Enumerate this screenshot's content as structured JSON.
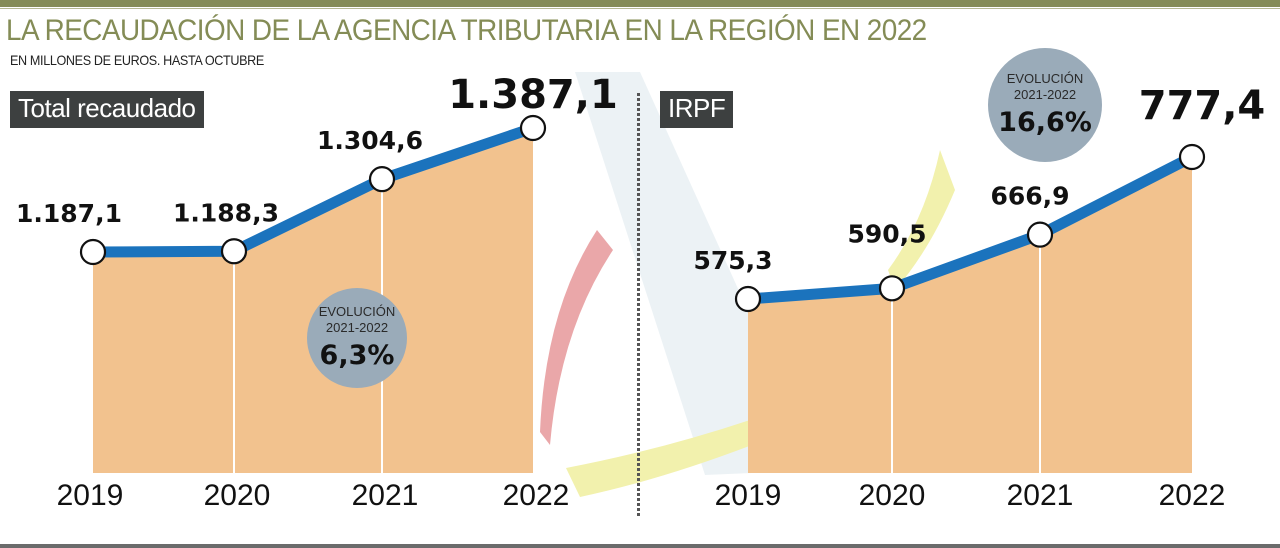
{
  "header": {
    "title": "LA RECAUDACIÓN DE LA AGENCIA TRIBUTARIA EN LA REGIÓN EN 2022",
    "subtitle": "EN MILLONES DE EUROS. HASTA OCTUBRE"
  },
  "colors": {
    "title": "#848c56",
    "line": "#1b73bd",
    "area": "#f2c28e",
    "badge": "#9aabb9",
    "tag_bg": "#3d4040"
  },
  "chart_data": [
    {
      "type": "area",
      "title": "Total recaudado",
      "categories": [
        "2019",
        "2020",
        "2021",
        "2022"
      ],
      "values": [
        1187.1,
        1188.3,
        1304.6,
        1387.1
      ],
      "value_labels": [
        "1.187,1",
        "1.188,3",
        "1.304,6",
        "1.387,1"
      ],
      "unit": "millones de euros",
      "badge": {
        "line1": "EVOLUCIÓN",
        "line2": "2021-2022",
        "value": "6,3%"
      },
      "grid": false
    },
    {
      "type": "area",
      "title": "IRPF",
      "categories": [
        "2019",
        "2020",
        "2021",
        "2022"
      ],
      "values": [
        575.3,
        590.5,
        666.9,
        777.4
      ],
      "value_labels": [
        "575,3",
        "590,5",
        "666,9",
        "777,4"
      ],
      "unit": "millones de euros",
      "badge": {
        "line1": "EVOLUCIÓN",
        "line2": "2021-2022",
        "value": "16,6%"
      },
      "grid": false
    }
  ]
}
